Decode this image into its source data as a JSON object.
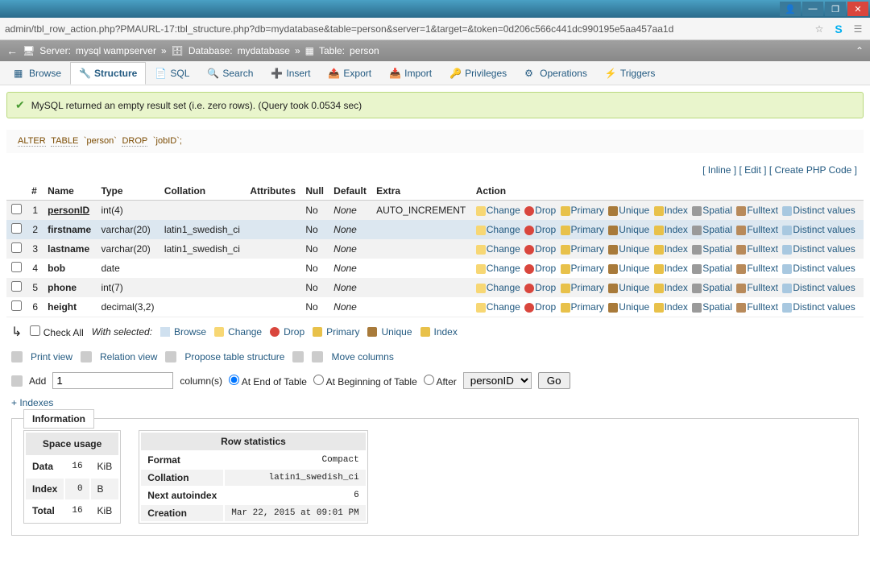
{
  "window": {
    "url": "admin/tbl_row_action.php?PMAURL-17:tbl_structure.php?db=mydatabase&table=person&server=1&target=&token=0d206c566c441dc990195e5aa457aa1d"
  },
  "breadcrumb": {
    "server_label": "Server:",
    "server_value": "mysql wampserver",
    "db_label": "Database:",
    "db_value": "mydatabase",
    "table_label": "Table:",
    "table_value": "person"
  },
  "tabs": {
    "browse": "Browse",
    "structure": "Structure",
    "sql": "SQL",
    "search": "Search",
    "insert": "Insert",
    "export": "Export",
    "import": "Import",
    "privileges": "Privileges",
    "operations": "Operations",
    "triggers": "Triggers"
  },
  "message": "MySQL returned an empty result set (i.e. zero rows). (Query took 0.0534 sec)",
  "sql": {
    "alter": "ALTER",
    "table": "TABLE",
    "t1": "`person`",
    "drop": "DROP",
    "t2": "`jobID`;"
  },
  "links": {
    "inline": "Inline",
    "edit": "Edit",
    "create_php": "Create PHP Code"
  },
  "headers": {
    "n": "#",
    "name": "Name",
    "type": "Type",
    "collation": "Collation",
    "attributes": "Attributes",
    "null": "Null",
    "default": "Default",
    "extra": "Extra",
    "action": "Action"
  },
  "actions": {
    "change": "Change",
    "drop": "Drop",
    "primary": "Primary",
    "unique": "Unique",
    "index": "Index",
    "spatial": "Spatial",
    "fulltext": "Fulltext",
    "distinct": "Distinct values"
  },
  "rows": [
    {
      "n": "1",
      "name": "personID",
      "type": "int(4)",
      "collation": "",
      "null": "No",
      "default": "None",
      "extra": "AUTO_INCREMENT",
      "pk": true,
      "cls": "odd"
    },
    {
      "n": "2",
      "name": "firstname",
      "type": "varchar(20)",
      "collation": "latin1_swedish_ci",
      "null": "No",
      "default": "None",
      "extra": "",
      "cls": "hl"
    },
    {
      "n": "3",
      "name": "lastname",
      "type": "varchar(20)",
      "collation": "latin1_swedish_ci",
      "null": "No",
      "default": "None",
      "extra": "",
      "cls": "odd"
    },
    {
      "n": "4",
      "name": "bob",
      "type": "date",
      "collation": "",
      "null": "No",
      "default": "None",
      "extra": "",
      "cls": ""
    },
    {
      "n": "5",
      "name": "phone",
      "type": "int(7)",
      "collation": "",
      "null": "No",
      "default": "None",
      "extra": "",
      "cls": "odd"
    },
    {
      "n": "6",
      "name": "height",
      "type": "decimal(3,2)",
      "collation": "",
      "null": "No",
      "default": "None",
      "extra": "",
      "cls": ""
    }
  ],
  "checkall": {
    "label": "Check All",
    "with_selected": "With selected:",
    "browse": "Browse",
    "change": "Change",
    "drop": "Drop",
    "primary": "Primary",
    "unique": "Unique",
    "index": "Index"
  },
  "tools": {
    "print": "Print view",
    "relation": "Relation view",
    "propose": "Propose table structure",
    "move": "Move columns"
  },
  "add": {
    "label": "Add",
    "value": "1",
    "columns": "column(s)",
    "end": "At End of Table",
    "begin": "At Beginning of Table",
    "after": "After",
    "after_col": "personID",
    "go": "Go"
  },
  "indexes": "+ Indexes",
  "info": {
    "title": "Information",
    "space": {
      "title": "Space usage",
      "rows": [
        {
          "k": "Data",
          "v": "16",
          "u": "KiB"
        },
        {
          "k": "Index",
          "v": "0",
          "u": "B"
        },
        {
          "k": "Total",
          "v": "16",
          "u": "KiB"
        }
      ]
    },
    "stats": {
      "title": "Row statistics",
      "rows": [
        {
          "k": "Format",
          "v": "Compact"
        },
        {
          "k": "Collation",
          "v": "latin1_swedish_ci"
        },
        {
          "k": "Next autoindex",
          "v": "6"
        },
        {
          "k": "Creation",
          "v": "Mar 22, 2015 at 09:01 PM"
        }
      ]
    }
  }
}
